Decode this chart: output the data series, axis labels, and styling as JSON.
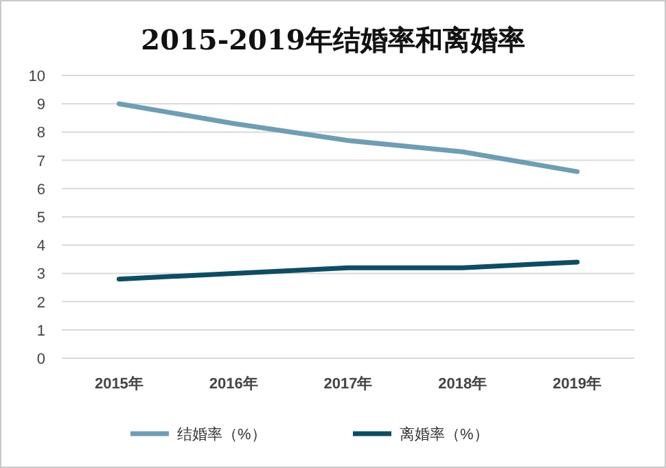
{
  "chart_data": {
    "type": "line",
    "title": "2015-2019年结婚率和离婚率",
    "categories": [
      "2015年",
      "2016年",
      "2017年",
      "2018年",
      "2019年"
    ],
    "series": [
      {
        "name": "结婚率（%）",
        "color": "#6f9db3",
        "values": [
          9.0,
          8.3,
          7.7,
          7.3,
          6.6
        ]
      },
      {
        "name": "离婚率（%）",
        "color": "#0f4c62",
        "values": [
          2.8,
          3.0,
          3.2,
          3.2,
          3.4
        ]
      }
    ],
    "ylim": [
      0,
      10
    ],
    "yticks": [
      0,
      1,
      2,
      3,
      4,
      5,
      6,
      7,
      8,
      9,
      10
    ],
    "grid": "y",
    "legend": "bottom",
    "marker": "none",
    "line_style": "solid"
  }
}
